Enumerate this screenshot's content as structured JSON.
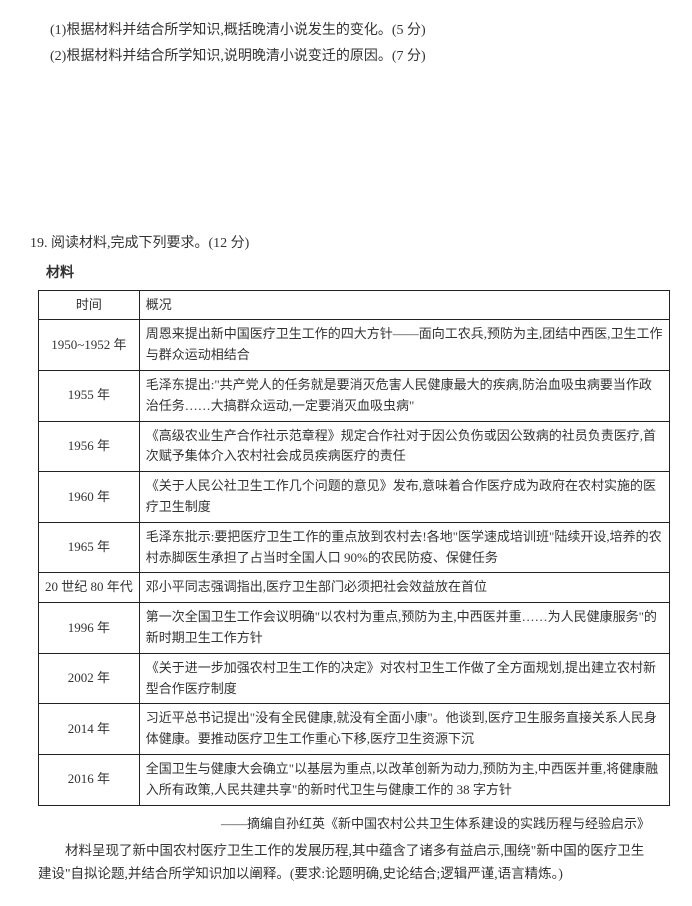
{
  "q18": {
    "sub1": "(1)根据材料并结合所学知识,概括晚清小说发生的变化。(5 分)",
    "sub2": "(2)根据材料并结合所学知识,说明晚清小说变迁的原因。(7 分)"
  },
  "q19": {
    "header": "19. 阅读材料,完成下列要求。(12 分)",
    "material_label": "材料",
    "table": {
      "head_time": "时间",
      "head_desc": "概况",
      "rows": [
        {
          "time": "1950~1952 年",
          "desc": "周恩来提出新中国医疗卫生工作的四大方针——面向工农兵,预防为主,团结中西医,卫生工作与群众运动相结合"
        },
        {
          "time": "1955 年",
          "desc": "毛泽东提出:\"共产党人的任务就是要消灭危害人民健康最大的疾病,防治血吸虫病要当作政治任务……大搞群众运动,一定要消灭血吸虫病\""
        },
        {
          "time": "1956 年",
          "desc": "《高级农业生产合作社示范章程》规定合作社对于因公负伤或因公致病的社员负责医疗,首次赋予集体介入农村社会成员疾病医疗的责任"
        },
        {
          "time": "1960 年",
          "desc": "《关于人民公社卫生工作几个问题的意见》发布,意味着合作医疗成为政府在农村实施的医疗卫生制度"
        },
        {
          "time": "1965 年",
          "desc": "毛泽东批示:要把医疗卫生工作的重点放到农村去!各地\"医学速成培训班\"陆续开设,培养的农村赤脚医生承担了占当时全国人口 90%的农民防疫、保健任务"
        },
        {
          "time": "20 世纪 80 年代",
          "desc": "邓小平同志强调指出,医疗卫生部门必须把社会效益放在首位"
        },
        {
          "time": "1996 年",
          "desc": "第一次全国卫生工作会议明确\"以农村为重点,预防为主,中西医并重……为人民健康服务\"的新时期卫生工作方针"
        },
        {
          "time": "2002 年",
          "desc": "《关于进一步加强农村卫生工作的决定》对农村卫生工作做了全方面规划,提出建立农村新型合作医疗制度"
        },
        {
          "time": "2014 年",
          "desc": "习近平总书记提出\"没有全民健康,就没有全面小康\"。他谈到,医疗卫生服务直接关系人民身体健康。要推动医疗卫生工作重心下移,医疗卫生资源下沉"
        },
        {
          "time": "2016 年",
          "desc": "全国卫生与健康大会确立\"以基层为重点,以改革创新为动力,预防为主,中西医并重,将健康融入所有政策,人民共建共享\"的新时代卫生与健康工作的 38 字方针"
        }
      ]
    },
    "source": "——摘编自孙红英《新中国农村公共卫生体系建设的实践历程与经验启示》",
    "instructions": "材料呈现了新中国农村医疗卫生工作的发展历程,其中蕴含了诸多有益启示,围绕\"新中国的医疗卫生建设\"自拟论题,并结合所学知识加以阐释。(要求:论题明确,史论结合;逻辑严谨,语言精炼。)"
  }
}
